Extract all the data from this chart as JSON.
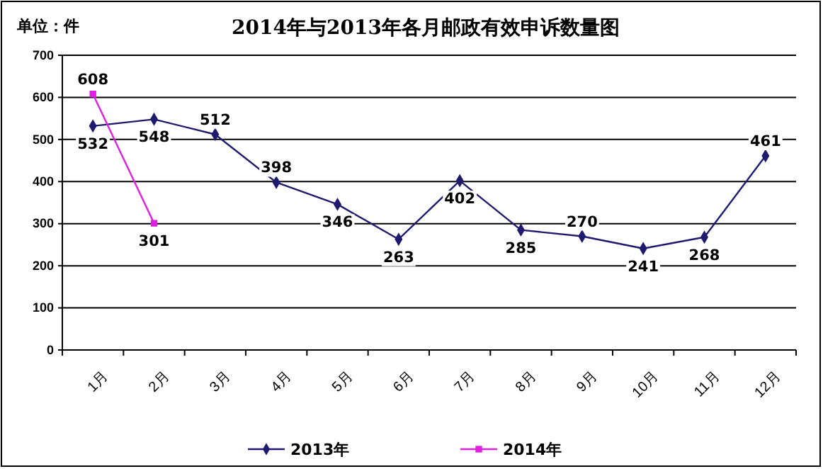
{
  "chart_data": {
    "type": "line",
    "title": "2014年与2013年各月邮政有效申诉数量图",
    "annotations": [
      "单位：件"
    ],
    "categories": [
      "1月",
      "2月",
      "3月",
      "4月",
      "5月",
      "6月",
      "7月",
      "8月",
      "9月",
      "10月",
      "11月",
      "12月"
    ],
    "series": [
      {
        "name": "2013年",
        "color": "#1f1a6e",
        "marker": "diamond",
        "values": [
          532,
          548,
          512,
          398,
          346,
          263,
          402,
          285,
          270,
          241,
          268,
          461
        ]
      },
      {
        "name": "2014年",
        "color": "#e020e0",
        "marker": "square",
        "values": [
          608,
          301,
          null,
          null,
          null,
          null,
          null,
          null,
          null,
          null,
          null,
          null
        ]
      }
    ],
    "ylim": [
      0,
      700
    ],
    "yticks": [
      0,
      100,
      200,
      300,
      400,
      500,
      600,
      700
    ],
    "grid": "y",
    "legend": "bottom",
    "data_labels": true
  }
}
